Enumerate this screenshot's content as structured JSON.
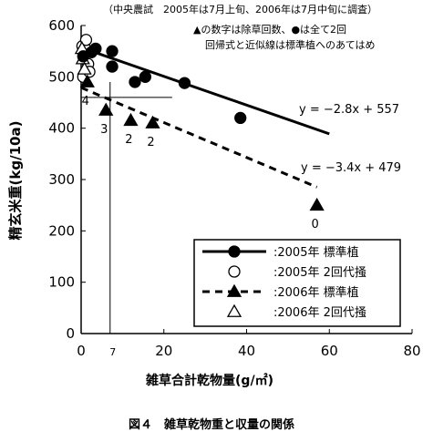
{
  "chart_data": {
    "type": "scatter",
    "note": "（中央農試　2005年は7月上旬、2006年は7月中旬に調査）",
    "annotation_line1": "▲の数字は除草回数、●は全て2回",
    "annotation_line2": "回帰式と近似線は標準植へのあてはめ",
    "xlabel": "雑草合計乾物量(g/㎡)",
    "ylabel": "精玄米重(kg/10a)",
    "xlim": [
      0,
      80
    ],
    "ylim": [
      0,
      600
    ],
    "x_ticks": [
      "0",
      "20",
      "40",
      "60",
      "80"
    ],
    "y_ticks": [
      "0",
      "100",
      "200",
      "300",
      "400",
      "500",
      "600"
    ],
    "caption": "図４　雑草乾物重と収量の関係",
    "reference_line": {
      "x": 7,
      "y": 460,
      "label": "7"
    },
    "equations": [
      {
        "text": "y = −2.8x + 557",
        "series": "2005年 標準植"
      },
      {
        "text": "y = −3.4x + 479",
        "series": "2006年 標準植"
      }
    ],
    "series": [
      {
        "name": "2005年 標準植",
        "marker": "filled-circle",
        "points": [
          [
            0.5,
            540
          ],
          [
            2.5,
            548
          ],
          [
            3.5,
            555
          ],
          [
            7.5,
            550
          ],
          [
            7.5,
            520
          ],
          [
            13,
            490
          ],
          [
            15.5,
            500
          ],
          [
            25,
            488
          ],
          [
            38.5,
            420
          ]
        ],
        "fit": {
          "slope": -2.8,
          "intercept": 557,
          "x_range": [
            0,
            60
          ]
        }
      },
      {
        "name": "2005年 2回代掻",
        "marker": "open-circle",
        "points": [
          [
            0.3,
            560
          ],
          [
            1,
            555
          ],
          [
            1.2,
            572
          ],
          [
            0.5,
            500
          ],
          [
            1.7,
            525
          ],
          [
            2,
            510
          ]
        ],
        "fit": null
      },
      {
        "name": "2006年 標準植",
        "marker": "filled-triangle",
        "points": [
          [
            1.5,
            490
          ],
          [
            6,
            435
          ],
          [
            12,
            415
          ],
          [
            17.3,
            410
          ],
          [
            57,
            250
          ]
        ],
        "point_labels": [
          "4",
          "3",
          "2",
          "2",
          "0"
        ],
        "fit": {
          "slope": -3.4,
          "intercept": 479,
          "x_range": [
            0,
            57
          ]
        }
      },
      {
        "name": "2006年 2回代掻",
        "marker": "open-triangle",
        "points": [
          [
            0.2,
            555
          ],
          [
            0.4,
            535
          ],
          [
            0.8,
            515
          ]
        ],
        "fit": null
      }
    ],
    "legend": {
      "placement": "bottom-right",
      "entries": [
        {
          "label": ":2005年  標準植"
        },
        {
          "label": ":2005年  2回代掻"
        },
        {
          "label": ":2006年  標準植"
        },
        {
          "label": ":2006年  2回代掻"
        }
      ]
    }
  }
}
